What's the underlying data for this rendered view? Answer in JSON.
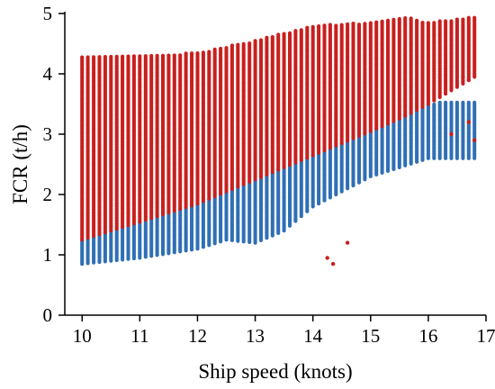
{
  "chart_data": {
    "type": "scatter",
    "title": "",
    "xlabel": "Ship speed (knots)",
    "ylabel": "FCR (t/h)",
    "xlim": [
      9.7,
      17.0
    ],
    "ylim": [
      0,
      5.0
    ],
    "xticks": [
      10,
      11,
      12,
      13,
      14,
      15,
      16,
      17
    ],
    "yticks": [
      0,
      1,
      2,
      3,
      4,
      5
    ],
    "grid": false,
    "legend": "none",
    "series": [
      {
        "color": "#c8201e",
        "style": "dense vertical point columns at 0.1-knot speed steps",
        "x_range": [
          10.0,
          16.8
        ],
        "band_lower": [
          [
            10.0,
            1.25
          ],
          [
            11.0,
            1.55
          ],
          [
            12.0,
            1.85
          ],
          [
            13.0,
            2.25
          ],
          [
            14.0,
            2.65
          ],
          [
            15.0,
            3.05
          ],
          [
            15.6,
            3.3
          ],
          [
            16.0,
            3.5
          ],
          [
            16.8,
            3.95
          ]
        ],
        "band_upper": [
          [
            10.0,
            4.3
          ],
          [
            11.0,
            4.3
          ],
          [
            12.0,
            4.35
          ],
          [
            13.0,
            4.55
          ],
          [
            14.0,
            4.8
          ],
          [
            15.0,
            4.85
          ],
          [
            15.6,
            4.95
          ],
          [
            16.0,
            4.85
          ],
          [
            16.8,
            4.95
          ]
        ],
        "extra_points": [
          [
            14.25,
            0.95
          ],
          [
            14.35,
            0.85
          ],
          [
            14.6,
            1.2
          ],
          [
            16.4,
            3.0
          ],
          [
            16.7,
            3.2
          ],
          [
            16.8,
            2.9
          ]
        ]
      },
      {
        "color": "#2f6fb6",
        "style": "dense vertical point columns at 0.1-knot speed steps",
        "x_range": [
          10.0,
          16.8
        ],
        "band_lower": [
          [
            10.0,
            0.85
          ],
          [
            11.0,
            0.95
          ],
          [
            12.0,
            1.1
          ],
          [
            12.5,
            1.25
          ],
          [
            13.0,
            1.2
          ],
          [
            13.5,
            1.4
          ],
          [
            14.0,
            1.8
          ],
          [
            15.0,
            2.3
          ],
          [
            16.0,
            2.6
          ]
        ],
        "band_upper": [
          [
            10.0,
            1.25
          ],
          [
            11.0,
            1.55
          ],
          [
            12.0,
            1.85
          ],
          [
            13.0,
            2.25
          ],
          [
            14.0,
            2.65
          ],
          [
            15.0,
            3.05
          ],
          [
            15.6,
            3.3
          ],
          [
            16.0,
            3.5
          ],
          [
            16.3,
            3.55
          ]
        ],
        "extra_points": [
          [
            16.6,
            3.95
          ],
          [
            16.7,
            3.9
          ]
        ]
      }
    ]
  }
}
